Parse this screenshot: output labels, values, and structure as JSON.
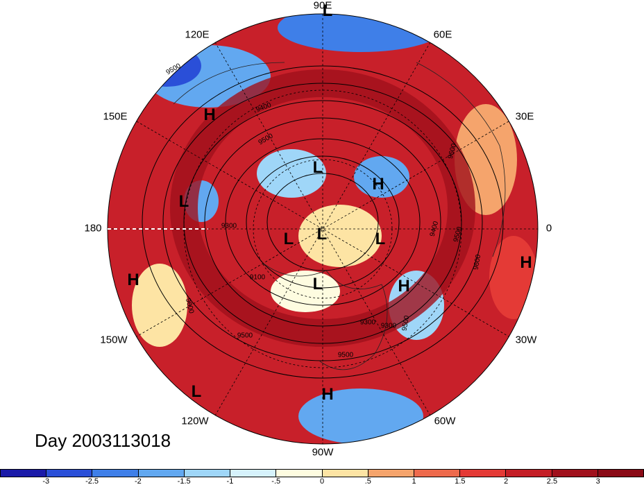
{
  "title": "Day 2003113018",
  "longitude_labels": [
    {
      "text": "90E",
      "key": "lon-90e"
    },
    {
      "text": "60E",
      "key": "lon-60e"
    },
    {
      "text": "120E",
      "key": "lon-120e"
    },
    {
      "text": "30E",
      "key": "lon-30e"
    },
    {
      "text": "150E",
      "key": "lon-150e"
    },
    {
      "text": "180",
      "key": "lon-180"
    },
    {
      "text": "0",
      "key": "lon-0"
    },
    {
      "text": "150W",
      "key": "lon-150w"
    },
    {
      "text": "30W",
      "key": "lon-30w"
    },
    {
      "text": "120W",
      "key": "lon-120w"
    },
    {
      "text": "60W",
      "key": "lon-60w"
    },
    {
      "text": "90W",
      "key": "lon-90w"
    }
  ],
  "pressure_markers": [
    "H",
    "L",
    "L",
    "H",
    "L",
    "L",
    "L",
    "L",
    "H",
    "H",
    "L",
    "H",
    "H",
    "L"
  ],
  "contour_labels": [
    "9300",
    "9400",
    "9500",
    "9600",
    "9100",
    "9300",
    "9500",
    "9500",
    "9600",
    "9400",
    "9600",
    "9500",
    "9500",
    "9300",
    "9500"
  ],
  "colorbar": {
    "colors": [
      "#1a1aa8",
      "#2a4fd8",
      "#3f7fe8",
      "#62a8f0",
      "#9fd6f8",
      "#d6f2fc",
      "#fefce0",
      "#fde4a4",
      "#f5a46c",
      "#ee6a4c",
      "#e43a36",
      "#c41e26",
      "#a0101c",
      "#8a0a16"
    ],
    "ticks": [
      "-3",
      "-2.5",
      "-2",
      "-1.5",
      "-1",
      "-.5",
      "0",
      ".5",
      "1",
      "1.5",
      "2",
      "2.5",
      "3"
    ]
  }
}
